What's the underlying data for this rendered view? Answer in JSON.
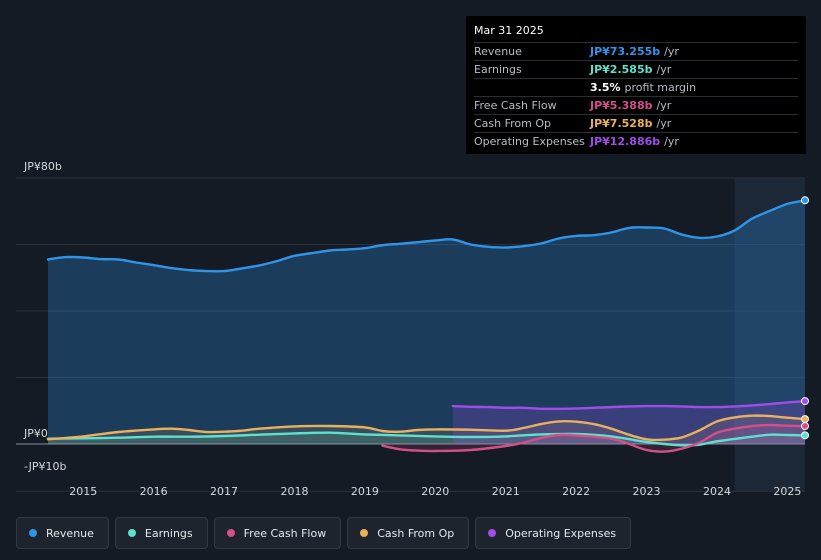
{
  "chart_data": {
    "type": "area",
    "title": "",
    "y_unit_labels": {
      "top": "JP¥80b",
      "zero": "JP¥0",
      "bottom": "-JP¥10b"
    },
    "ylim": [
      -10,
      80
    ],
    "x_ticks": [
      "2015",
      "2016",
      "2017",
      "2018",
      "2019",
      "2020",
      "2021",
      "2022",
      "2023",
      "2024",
      "2025"
    ],
    "xlim": [
      2014.5,
      2025.3
    ],
    "highlight_start": 2024.25,
    "series": [
      {
        "name": "Revenue",
        "color": "#2f95e8",
        "points": [
          [
            2014.5,
            55.5
          ],
          [
            2014.75,
            56.2
          ],
          [
            2015.0,
            56.1
          ],
          [
            2015.25,
            55.6
          ],
          [
            2015.5,
            55.5
          ],
          [
            2015.75,
            54.6
          ],
          [
            2016.0,
            53.8
          ],
          [
            2016.25,
            52.9
          ],
          [
            2016.5,
            52.3
          ],
          [
            2016.75,
            52.0
          ],
          [
            2017.0,
            52.0
          ],
          [
            2017.25,
            52.8
          ],
          [
            2017.5,
            53.7
          ],
          [
            2017.75,
            55.0
          ],
          [
            2018.0,
            56.6
          ],
          [
            2018.25,
            57.4
          ],
          [
            2018.5,
            58.2
          ],
          [
            2018.75,
            58.5
          ],
          [
            2019.0,
            58.9
          ],
          [
            2019.25,
            59.8
          ],
          [
            2019.5,
            60.2
          ],
          [
            2019.75,
            60.7
          ],
          [
            2020.0,
            61.2
          ],
          [
            2020.25,
            61.5
          ],
          [
            2020.5,
            60.0
          ],
          [
            2020.75,
            59.3
          ],
          [
            2021.0,
            59.1
          ],
          [
            2021.25,
            59.5
          ],
          [
            2021.5,
            60.3
          ],
          [
            2021.75,
            61.8
          ],
          [
            2022.0,
            62.6
          ],
          [
            2022.25,
            62.8
          ],
          [
            2022.5,
            63.6
          ],
          [
            2022.75,
            65.0
          ],
          [
            2023.0,
            65.1
          ],
          [
            2023.25,
            64.8
          ],
          [
            2023.5,
            63.0
          ],
          [
            2023.75,
            62.0
          ],
          [
            2024.0,
            62.4
          ],
          [
            2024.25,
            64.2
          ],
          [
            2024.5,
            67.8
          ],
          [
            2024.75,
            70.1
          ],
          [
            2025.0,
            72.2
          ],
          [
            2025.25,
            73.3
          ]
        ]
      },
      {
        "name": "Earnings",
        "color": "#5ee0cf",
        "points": [
          [
            2014.5,
            1.6
          ],
          [
            2015.0,
            1.7
          ],
          [
            2015.5,
            1.9
          ],
          [
            2016.0,
            2.2
          ],
          [
            2016.5,
            2.2
          ],
          [
            2017.0,
            2.4
          ],
          [
            2017.5,
            2.8
          ],
          [
            2018.0,
            3.2
          ],
          [
            2018.5,
            3.4
          ],
          [
            2019.0,
            2.9
          ],
          [
            2019.5,
            2.6
          ],
          [
            2020.0,
            2.3
          ],
          [
            2020.5,
            2.1
          ],
          [
            2021.0,
            2.3
          ],
          [
            2021.5,
            2.9
          ],
          [
            2022.0,
            3.0
          ],
          [
            2022.5,
            2.3
          ],
          [
            2023.0,
            0.6
          ],
          [
            2023.5,
            -0.4
          ],
          [
            2023.75,
            -0.2
          ],
          [
            2024.0,
            0.8
          ],
          [
            2024.5,
            2.2
          ],
          [
            2024.75,
            2.8
          ],
          [
            2025.0,
            2.7
          ],
          [
            2025.25,
            2.6
          ]
        ]
      },
      {
        "name": "Free Cash Flow",
        "color": "#d34f8a",
        "points": [
          [
            2019.25,
            -0.5
          ],
          [
            2019.5,
            -1.6
          ],
          [
            2019.75,
            -2.0
          ],
          [
            2020.0,
            -2.1
          ],
          [
            2020.5,
            -1.8
          ],
          [
            2021.0,
            -0.6
          ],
          [
            2021.25,
            0.4
          ],
          [
            2021.5,
            1.8
          ],
          [
            2021.75,
            2.7
          ],
          [
            2022.0,
            2.6
          ],
          [
            2022.5,
            1.6
          ],
          [
            2022.75,
            0.0
          ],
          [
            2023.0,
            -1.8
          ],
          [
            2023.25,
            -2.3
          ],
          [
            2023.5,
            -1.4
          ],
          [
            2023.75,
            0.4
          ],
          [
            2024.0,
            3.4
          ],
          [
            2024.25,
            4.6
          ],
          [
            2024.5,
            5.4
          ],
          [
            2024.75,
            5.7
          ],
          [
            2025.0,
            5.5
          ],
          [
            2025.25,
            5.4
          ]
        ]
      },
      {
        "name": "Cash From Op",
        "color": "#e9b05e",
        "points": [
          [
            2014.5,
            1.4
          ],
          [
            2015.0,
            2.3
          ],
          [
            2015.5,
            3.6
          ],
          [
            2016.0,
            4.4
          ],
          [
            2016.25,
            4.6
          ],
          [
            2016.5,
            4.2
          ],
          [
            2016.75,
            3.6
          ],
          [
            2017.0,
            3.7
          ],
          [
            2017.25,
            4.0
          ],
          [
            2017.5,
            4.6
          ],
          [
            2018.0,
            5.3
          ],
          [
            2018.5,
            5.4
          ],
          [
            2019.0,
            5.0
          ],
          [
            2019.25,
            3.9
          ],
          [
            2019.5,
            3.7
          ],
          [
            2019.75,
            4.2
          ],
          [
            2020.0,
            4.4
          ],
          [
            2020.5,
            4.3
          ],
          [
            2021.0,
            4.0
          ],
          [
            2021.25,
            4.8
          ],
          [
            2021.5,
            6.0
          ],
          [
            2021.75,
            6.8
          ],
          [
            2022.0,
            6.7
          ],
          [
            2022.25,
            6.0
          ],
          [
            2022.5,
            4.6
          ],
          [
            2022.75,
            2.8
          ],
          [
            2023.0,
            1.4
          ],
          [
            2023.25,
            1.3
          ],
          [
            2023.5,
            2.0
          ],
          [
            2023.75,
            4.1
          ],
          [
            2024.0,
            6.8
          ],
          [
            2024.25,
            8.0
          ],
          [
            2024.5,
            8.5
          ],
          [
            2024.75,
            8.4
          ],
          [
            2025.0,
            7.9
          ],
          [
            2025.25,
            7.5
          ]
        ]
      },
      {
        "name": "Operating Expenses",
        "color": "#a04ce8",
        "points": [
          [
            2020.25,
            11.4
          ],
          [
            2020.5,
            11.2
          ],
          [
            2020.75,
            11.1
          ],
          [
            2021.0,
            10.9
          ],
          [
            2021.25,
            10.9
          ],
          [
            2021.5,
            10.6
          ],
          [
            2021.75,
            10.6
          ],
          [
            2022.0,
            10.7
          ],
          [
            2022.25,
            10.9
          ],
          [
            2022.5,
            11.1
          ],
          [
            2022.75,
            11.3
          ],
          [
            2023.0,
            11.4
          ],
          [
            2023.25,
            11.4
          ],
          [
            2023.5,
            11.3
          ],
          [
            2023.75,
            11.1
          ],
          [
            2024.0,
            11.1
          ],
          [
            2024.25,
            11.3
          ],
          [
            2024.5,
            11.6
          ],
          [
            2024.75,
            12.0
          ],
          [
            2025.0,
            12.5
          ],
          [
            2025.25,
            12.9
          ]
        ]
      }
    ]
  },
  "tooltip": {
    "date": "Mar 31 2025",
    "rows": [
      {
        "label": "Revenue",
        "value": "JP¥73.255b",
        "unit": "/yr",
        "color": "#2f95e8"
      },
      {
        "label": "Earnings",
        "value": "JP¥2.585b",
        "unit": "/yr",
        "color": "#5ee0cf"
      },
      {
        "label": "",
        "value": "3.5%",
        "unit": "profit margin",
        "color": "#ffffff"
      },
      {
        "label": "Free Cash Flow",
        "value": "JP¥5.388b",
        "unit": "/yr",
        "color": "#d34f8a"
      },
      {
        "label": "Cash From Op",
        "value": "JP¥7.528b",
        "unit": "/yr",
        "color": "#e9b05e"
      },
      {
        "label": "Operating Expenses",
        "value": "JP¥12.886b",
        "unit": "/yr",
        "color": "#a04ce8"
      }
    ]
  },
  "legend": [
    {
      "label": "Revenue",
      "color": "#2f95e8"
    },
    {
      "label": "Earnings",
      "color": "#5ee0cf"
    },
    {
      "label": "Free Cash Flow",
      "color": "#d34f8a"
    },
    {
      "label": "Cash From Op",
      "color": "#e9b05e"
    },
    {
      "label": "Operating Expenses",
      "color": "#a04ce8"
    }
  ]
}
